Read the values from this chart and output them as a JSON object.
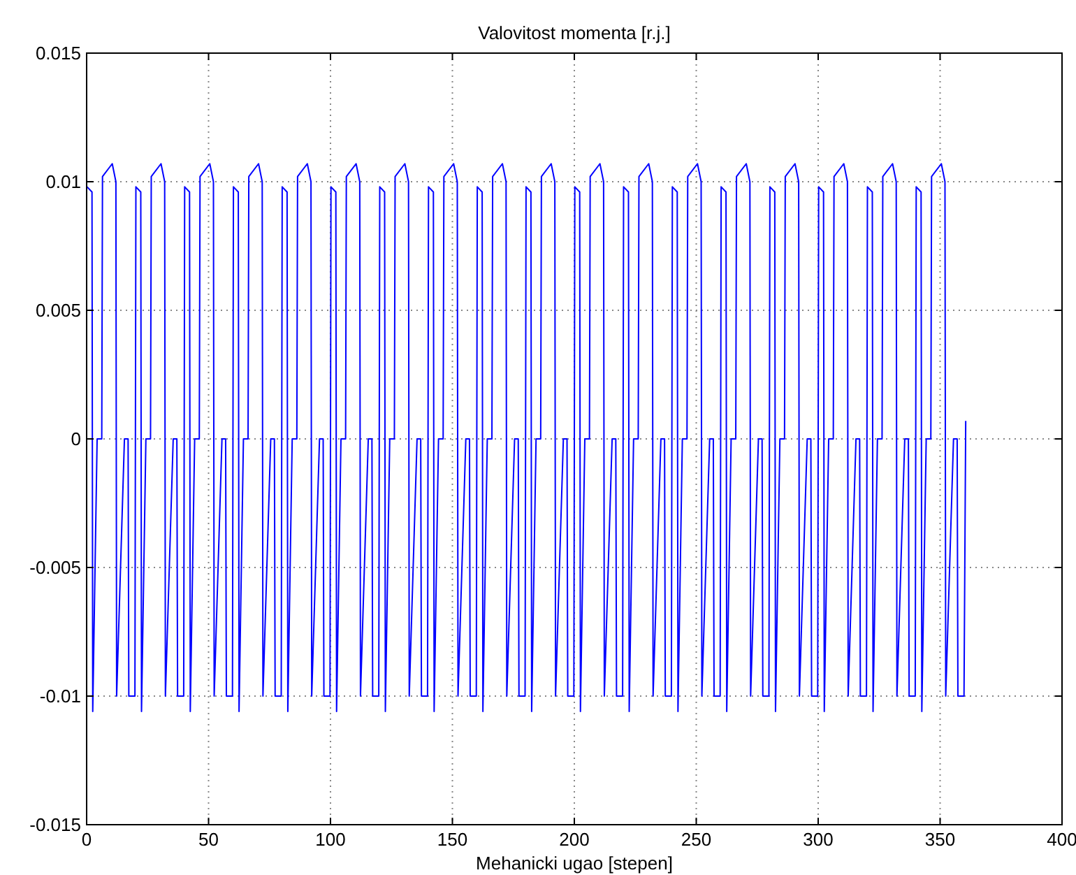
{
  "chart_data": {
    "type": "line",
    "title": "Valovitost momenta [r.j.]",
    "xlabel": "Mehanicki ugao [stepen]",
    "xlim": [
      0,
      400
    ],
    "xticks": [
      0,
      50,
      100,
      150,
      200,
      250,
      300,
      350,
      400
    ],
    "ylim": [
      -0.015,
      0.015
    ],
    "yticks": [
      -0.015,
      -0.01,
      -0.005,
      0,
      0.005,
      0.01,
      0.015
    ],
    "grid": true,
    "line_style": "solid",
    "x": [
      0.2,
      2.2,
      2.5,
      4.3,
      6.2,
      6.5,
      10.5,
      12,
      12.3,
      15.5,
      17,
      17.3,
      19.8,
      20.2,
      22.2,
      22.5,
      24.3,
      26.2,
      26.5,
      30.5,
      32,
      32.3,
      35.5,
      37,
      37.3,
      39.8,
      40.2,
      42.2,
      42.5,
      44.3,
      46.2,
      46.5,
      50.5,
      52,
      52.3,
      55.5,
      57,
      57.3,
      59.8,
      60.2,
      62.2,
      62.5,
      64.3,
      66.2,
      66.5,
      70.5,
      72,
      72.3,
      75.5,
      77,
      77.3,
      79.8,
      80.2,
      82.2,
      82.5,
      84.3,
      86.2,
      86.5,
      90.5,
      92,
      92.3,
      95.5,
      97,
      97.3,
      99.8,
      100.2,
      102.2,
      102.5,
      104.3,
      106.2,
      106.5,
      110.5,
      112,
      112.3,
      115.5,
      117,
      117.3,
      119.8,
      120.2,
      122.2,
      122.5,
      124.3,
      126.2,
      126.5,
      130.5,
      132,
      132.3,
      135.5,
      137,
      137.3,
      139.8,
      140.2,
      142.2,
      142.5,
      144.3,
      146.2,
      146.5,
      150.5,
      152,
      152.3,
      155.5,
      157,
      157.3,
      159.8,
      160.2,
      162.2,
      162.5,
      164.3,
      166.2,
      166.5,
      170.5,
      172,
      172.3,
      175.5,
      177,
      177.3,
      179.8,
      180.2,
      182.2,
      182.5,
      184.3,
      186.2,
      186.5,
      190.5,
      192,
      192.3,
      195.5,
      197,
      197.3,
      199.8,
      200.2,
      202.2,
      202.5,
      204.3,
      206.2,
      206.5,
      210.5,
      212,
      212.3,
      215.5,
      217,
      217.3,
      219.8,
      220.2,
      222.2,
      222.5,
      224.3,
      226.2,
      226.5,
      230.5,
      232,
      232.3,
      235.5,
      237,
      237.3,
      239.8,
      240.2,
      242.2,
      242.5,
      244.3,
      246.2,
      246.5,
      250.5,
      252,
      252.3,
      255.5,
      257,
      257.3,
      259.8,
      260.2,
      262.2,
      262.5,
      264.3,
      266.2,
      266.5,
      270.5,
      272,
      272.3,
      275.5,
      277,
      277.3,
      279.8,
      280.2,
      282.2,
      282.5,
      284.3,
      286.2,
      286.5,
      290.5,
      292,
      292.3,
      295.5,
      297,
      297.3,
      299.8,
      300.2,
      302.2,
      302.5,
      304.3,
      306.2,
      306.5,
      310.5,
      312,
      312.3,
      315.5,
      317,
      317.3,
      319.8,
      320.2,
      322.2,
      322.5,
      324.3,
      326.2,
      326.5,
      330.5,
      332,
      332.3,
      335.5,
      337,
      337.3,
      339.8,
      340.2,
      342.2,
      342.5,
      344.3,
      346.2,
      346.5,
      350.5,
      352,
      352.3,
      355.5,
      357,
      357.3,
      359.8,
      360.5
    ],
    "series": [
      {
        "color": "#0000ff",
        "values": [
          0.0098,
          0.0096,
          -0.0106,
          0,
          0,
          0.0102,
          0.0107,
          0.01,
          -0.01,
          0,
          0,
          -0.01,
          -0.01,
          0.0098,
          0.0096,
          -0.0106,
          0,
          0,
          0.0102,
          0.0107,
          0.01,
          -0.01,
          0,
          0,
          -0.01,
          -0.01,
          0.0098,
          0.0096,
          -0.0106,
          0,
          0,
          0.0102,
          0.0107,
          0.01,
          -0.01,
          0,
          0,
          -0.01,
          -0.01,
          0.0098,
          0.0096,
          -0.0106,
          0,
          0,
          0.0102,
          0.0107,
          0.01,
          -0.01,
          0,
          0,
          -0.01,
          -0.01,
          0.0098,
          0.0096,
          -0.0106,
          0,
          0,
          0.0102,
          0.0107,
          0.01,
          -0.01,
          0,
          0,
          -0.01,
          -0.01,
          0.0098,
          0.0096,
          -0.0106,
          0,
          0,
          0.0102,
          0.0107,
          0.01,
          -0.01,
          0,
          0,
          -0.01,
          -0.01,
          0.0098,
          0.0096,
          -0.0106,
          0,
          0,
          0.0102,
          0.0107,
          0.01,
          -0.01,
          0,
          0,
          -0.01,
          -0.01,
          0.0098,
          0.0096,
          -0.0106,
          0,
          0,
          0.0102,
          0.0107,
          0.01,
          -0.01,
          0,
          0,
          -0.01,
          -0.01,
          0.0098,
          0.0096,
          -0.0106,
          0,
          0,
          0.0102,
          0.0107,
          0.01,
          -0.01,
          0,
          0,
          -0.01,
          -0.01,
          0.0098,
          0.0096,
          -0.0106,
          0,
          0,
          0.0102,
          0.0107,
          0.01,
          -0.01,
          0,
          0,
          -0.01,
          -0.01,
          0.0098,
          0.0096,
          -0.0106,
          0,
          0,
          0.0102,
          0.0107,
          0.01,
          -0.01,
          0,
          0,
          -0.01,
          -0.01,
          0.0098,
          0.0096,
          -0.0106,
          0,
          0,
          0.0102,
          0.0107,
          0.01,
          -0.01,
          0,
          0,
          -0.01,
          -0.01,
          0.0098,
          0.0096,
          -0.0106,
          0,
          0,
          0.0102,
          0.0107,
          0.01,
          -0.01,
          0,
          0,
          -0.01,
          -0.01,
          0.0098,
          0.0096,
          -0.0106,
          0,
          0,
          0.0102,
          0.0107,
          0.01,
          -0.01,
          0,
          0,
          -0.01,
          -0.01,
          0.0098,
          0.0096,
          -0.0106,
          0,
          0,
          0.0102,
          0.0107,
          0.01,
          -0.01,
          0,
          0,
          -0.01,
          -0.01,
          0.0098,
          0.0096,
          -0.0106,
          0,
          0,
          0.0102,
          0.0107,
          0.01,
          -0.01,
          0,
          0,
          -0.01,
          -0.01,
          0.0098,
          0.0096,
          -0.0106,
          0,
          0,
          0.0102,
          0.0107,
          0.01,
          -0.01,
          0,
          0,
          -0.01,
          -0.01,
          0.0098,
          0.0096,
          -0.0106,
          0,
          0,
          0.0102,
          0.0107,
          0.01,
          -0.01,
          0,
          0,
          -0.01,
          -0.01,
          0.0007
        ]
      }
    ]
  }
}
